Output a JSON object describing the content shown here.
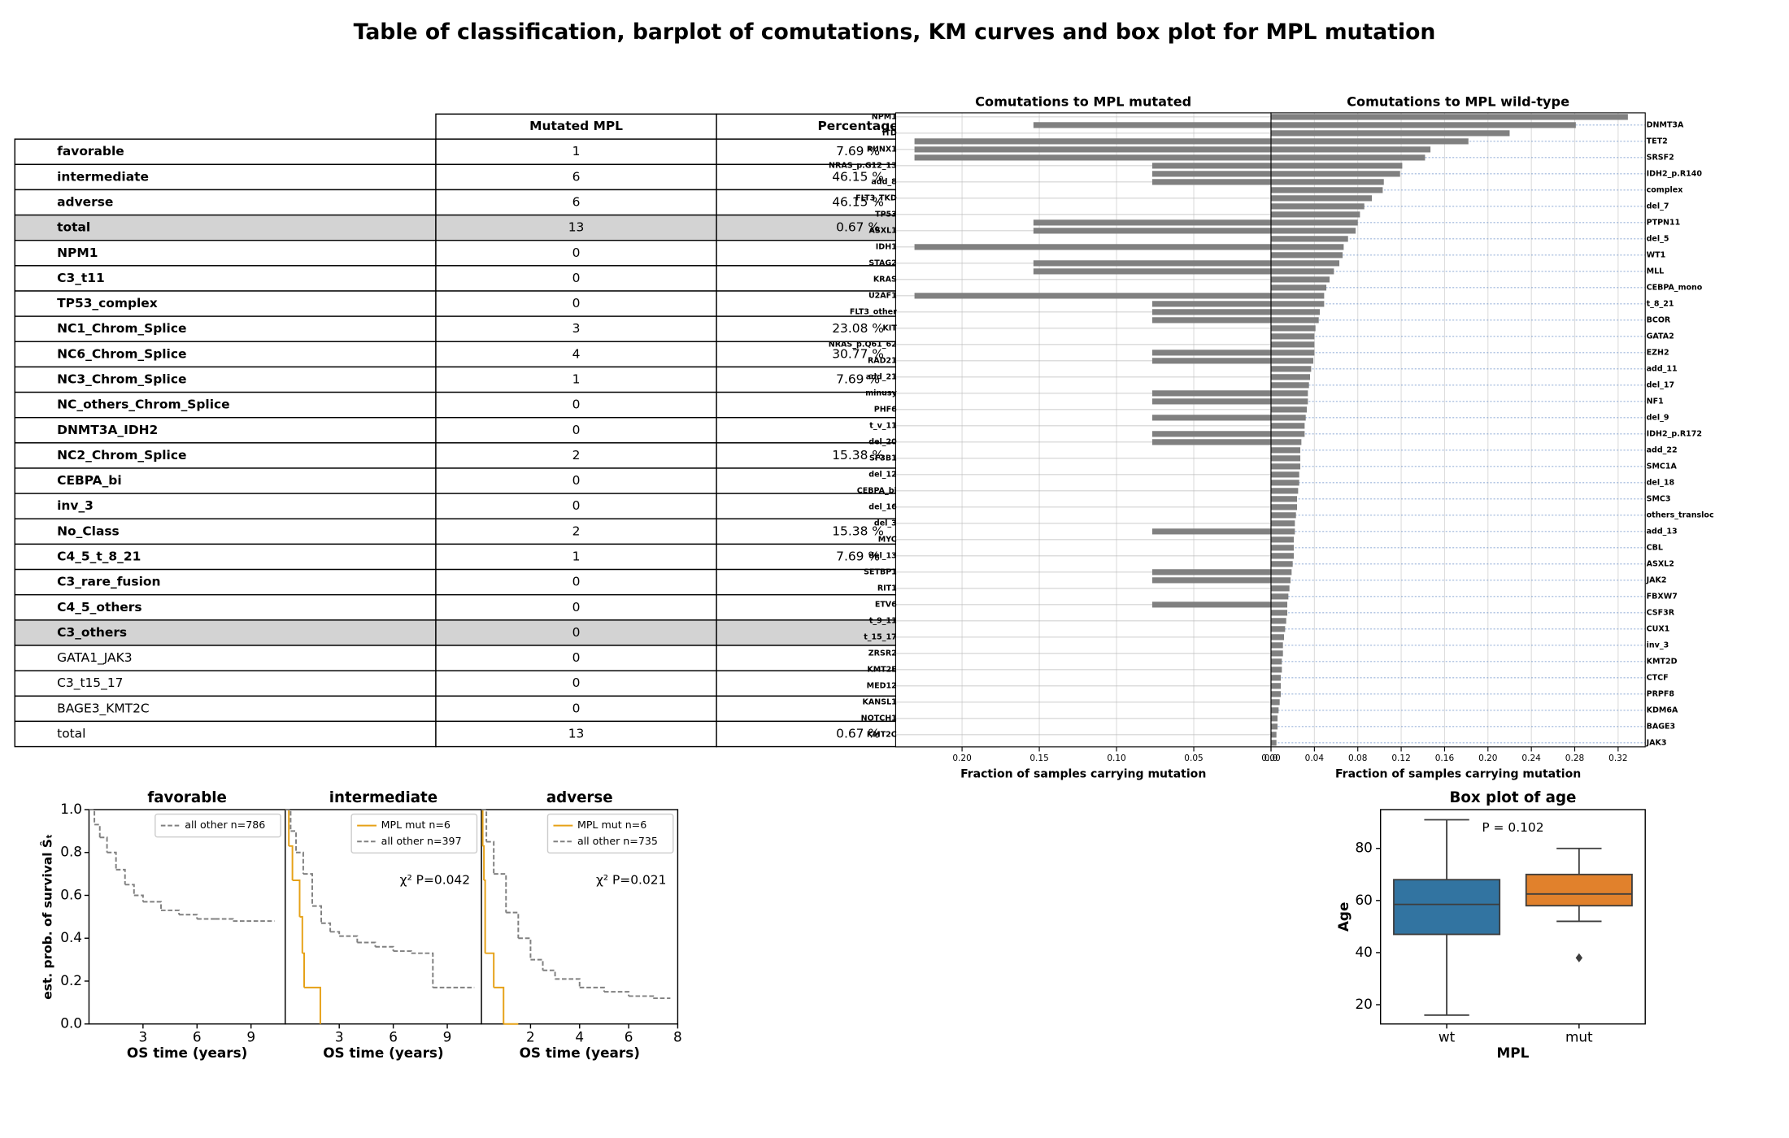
{
  "title": "Table of classification, barplot of comutations, KM curves and box plot for MPL mutation",
  "table": {
    "header": [
      "Mutated MPL",
      "Percentage"
    ],
    "rows": [
      {
        "cells": [
          "favorable",
          1,
          "7.69 %"
        ],
        "bold": true,
        "highlight": false
      },
      {
        "cells": [
          "intermediate",
          6,
          "46.15 %"
        ],
        "bold": true,
        "highlight": false
      },
      {
        "cells": [
          "adverse",
          6,
          "46.15 %"
        ],
        "bold": true,
        "highlight": false
      },
      {
        "cells": [
          "total",
          13,
          "0.67 %"
        ],
        "bold": true,
        "highlight": true
      },
      {
        "cells": [
          "NPM1",
          0,
          null
        ],
        "bold": true,
        "highlight": false
      },
      {
        "cells": [
          "C3_t11",
          0,
          null
        ],
        "bold": true,
        "highlight": false
      },
      {
        "cells": [
          "TP53_complex",
          0,
          null
        ],
        "bold": true,
        "highlight": false
      },
      {
        "cells": [
          "NC1_Chrom_Splice",
          3,
          "23.08 %"
        ],
        "bold": true,
        "highlight": false
      },
      {
        "cells": [
          "NC6_Chrom_Splice",
          4,
          "30.77 %"
        ],
        "bold": true,
        "highlight": false
      },
      {
        "cells": [
          "NC3_Chrom_Splice",
          1,
          "7.69 %"
        ],
        "bold": true,
        "highlight": false
      },
      {
        "cells": [
          "NC_others_Chrom_Splice",
          0,
          null
        ],
        "bold": true,
        "highlight": false
      },
      {
        "cells": [
          "DNMT3A_IDH2",
          0,
          null
        ],
        "bold": true,
        "highlight": false
      },
      {
        "cells": [
          "NC2_Chrom_Splice",
          2,
          "15.38 %"
        ],
        "bold": true,
        "highlight": false
      },
      {
        "cells": [
          "CEBPA_bi",
          0,
          null
        ],
        "bold": true,
        "highlight": false
      },
      {
        "cells": [
          "inv_3",
          0,
          null
        ],
        "bold": true,
        "highlight": false
      },
      {
        "cells": [
          "No_Class",
          2,
          "15.38 %"
        ],
        "bold": true,
        "highlight": false
      },
      {
        "cells": [
          "C4_5_t_8_21",
          1,
          "7.69 %"
        ],
        "bold": true,
        "highlight": false
      },
      {
        "cells": [
          "C3_rare_fusion",
          0,
          null
        ],
        "bold": true,
        "highlight": false
      },
      {
        "cells": [
          "C4_5_others",
          0,
          null
        ],
        "bold": true,
        "highlight": false
      },
      {
        "cells": [
          "C3_others",
          0,
          null
        ],
        "bold": true,
        "highlight": true
      },
      {
        "cells": [
          "GATA1_JAK3",
          0,
          null
        ],
        "bold": false,
        "highlight": false
      },
      {
        "cells": [
          "C3_t15_17",
          0,
          null
        ],
        "bold": false,
        "highlight": false
      },
      {
        "cells": [
          "BAGE3_KMT2C",
          0,
          null
        ],
        "bold": false,
        "highlight": false
      },
      {
        "cells": [
          "total",
          13,
          "0.67 %"
        ],
        "bold": false,
        "highlight": false
      }
    ]
  },
  "chart_data": [
    {
      "type": "comutation",
      "color": "#808080",
      "grid": true,
      "categories": [
        "NPM1",
        "DNMT3A",
        "ITD",
        "TET2",
        "RUNX1",
        "SRSF2",
        "NRAS_p.G12_13",
        "IDH2_p.R140",
        "add_8",
        "complex",
        "FLT3_TKD",
        "del_7",
        "TP53",
        "PTPN11",
        "ASXL1",
        "del_5",
        "IDH1",
        "WT1",
        "STAG2",
        "MLL",
        "KRAS",
        "CEBPA_mono",
        "U2AF1",
        "t_8_21",
        "FLT3_other",
        "BCOR",
        "KIT",
        "GATA2",
        "NRAS_p.Q61_62",
        "EZH2",
        "RAD21",
        "add_11",
        "add_21",
        "del_17",
        "minusy",
        "NF1",
        "PHF6",
        "del_9",
        "t_v_11",
        "IDH2_p.R172",
        "del_20",
        "add_22",
        "SF3B1",
        "SMC1A",
        "del_12",
        "del_18",
        "CEBPA_bi",
        "SMC3",
        "del_16",
        "others_transloc",
        "del_3",
        "add_13",
        "MYC",
        "CBL",
        "del_13",
        "ASXL2",
        "SETBP1",
        "JAK2",
        "RIT1",
        "FBXW7",
        "ETV6",
        "CSF3R",
        "t_9_11",
        "CUX1",
        "t_15_17",
        "inv_3",
        "ZRSR2",
        "KMT2D",
        "KMT2E",
        "CTCF",
        "MED12",
        "PRPF8",
        "KANSL1",
        "KDM6A",
        "NOTCH1",
        "BAGE3",
        "KMT2C",
        "JAK3"
      ],
      "panels": [
        {
          "title": "Comutations to MPL mutated",
          "xlabel": "Fraction of samples carrying mutation",
          "xlim": [
            0.243,
            0
          ],
          "xticks": [
            {
              "value": 0.2,
              "label": "0.20"
            },
            0.15,
            {
              "value": 0.1,
              "label": "0.10"
            },
            0.05,
            {
              "value": 0,
              "label": "0.00"
            }
          ],
          "values": [
            0,
            0.1538,
            0,
            0.2308,
            0.2308,
            0.2308,
            0.0769,
            0.0769,
            0.0769,
            0,
            0,
            0,
            0,
            0.1538,
            0.1538,
            0,
            0.2308,
            0,
            0.1538,
            0.1538,
            0,
            0,
            0.2308,
            0.0769,
            0.0769,
            0.0769,
            0,
            0,
            0,
            0.0769,
            0.0769,
            0,
            0,
            0,
            0.0769,
            0.0769,
            0,
            0.0769,
            0,
            0.0769,
            0.0769,
            0,
            0,
            0,
            0,
            0,
            0,
            0,
            0,
            0,
            0,
            0.0769,
            0,
            0,
            0,
            0,
            0.0769,
            0.0769,
            0,
            0,
            0.0769,
            0,
            0,
            0,
            0,
            0,
            0,
            0,
            0,
            0,
            0,
            0,
            0,
            0,
            0,
            0,
            0,
            0
          ]
        },
        {
          "title": "Comutations to MPL wild-type",
          "xlabel": "Fraction of samples carrying mutation",
          "xlim": [
            0,
            0.345
          ],
          "xticks": [
            {
              "value": 0,
              "label": "0.0"
            },
            0.04,
            0.08,
            0.12,
            0.16,
            {
              "value": 0.2,
              "label": "0.20"
            },
            0.24,
            0.28,
            0.32
          ],
          "values": [
            0.329,
            0.281,
            0.22,
            0.182,
            0.147,
            0.142,
            0.121,
            0.119,
            0.104,
            0.103,
            0.093,
            0.086,
            0.082,
            0.08,
            0.078,
            0.071,
            0.067,
            0.066,
            0.063,
            0.058,
            0.054,
            0.051,
            0.049,
            0.049,
            0.045,
            0.044,
            0.041,
            0.04,
            0.04,
            0.04,
            0.039,
            0.037,
            0.036,
            0.035,
            0.034,
            0.034,
            0.033,
            0.032,
            0.031,
            0.031,
            0.028,
            0.027,
            0.027,
            0.027,
            0.026,
            0.026,
            0.025,
            0.024,
            0.024,
            0.023,
            0.022,
            0.022,
            0.021,
            0.021,
            0.021,
            0.02,
            0.019,
            0.018,
            0.017,
            0.016,
            0.015,
            0.015,
            0.014,
            0.013,
            0.012,
            0.011,
            0.011,
            0.01,
            0.01,
            0.009,
            0.009,
            0.009,
            0.008,
            0.007,
            0.006,
            0.006,
            0.005,
            0.005
          ]
        }
      ]
    },
    {
      "type": "km",
      "title": "favorable",
      "xlabel": "OS time (years)",
      "ylabel": "est. prob. of survival Ŝₜ",
      "xlim": [
        0,
        10.9
      ],
      "ylim": [
        0,
        1
      ],
      "xticks": [
        3,
        6,
        9
      ],
      "yticks": [
        {
          "value": 0,
          "label": "0.0"
        },
        0.2,
        0.4,
        0.6,
        0.8,
        {
          "value": 1,
          "label": "1.0"
        }
      ],
      "legend": "upper right",
      "series": [
        {
          "name": "all other  n=786",
          "color": "#808080",
          "dashed": true,
          "x": [
            0,
            0.3,
            0.6,
            1,
            1.5,
            2,
            2.5,
            3,
            4,
            5,
            6,
            7,
            8,
            10.3
          ],
          "values": [
            1,
            0.93,
            0.87,
            0.8,
            0.72,
            0.65,
            0.6,
            0.57,
            0.53,
            0.51,
            0.49,
            0.49,
            0.48,
            0.48
          ]
        }
      ]
    },
    {
      "type": "km",
      "title": "intermediate",
      "xlabel": "OS time (years)",
      "xlim": [
        0,
        10.9
      ],
      "ylim": [
        0,
        1
      ],
      "xticks": [
        3,
        6,
        9
      ],
      "legend": "upper right",
      "annotation": "χ² P=0.042",
      "series": [
        {
          "name": "MPL  mut n=6",
          "color": "#e6a117",
          "dashed": false,
          "x": [
            0,
            0.2,
            0.4,
            0.8,
            0.95,
            1.05,
            1.95
          ],
          "values": [
            1,
            0.83,
            0.67,
            0.5,
            0.33,
            0.17,
            0
          ]
        },
        {
          "name": "all other  n=397",
          "color": "#808080",
          "dashed": true,
          "x": [
            0,
            0.3,
            0.6,
            1,
            1.5,
            2,
            2.5,
            3,
            4,
            5,
            6,
            7,
            8.2,
            10.5
          ],
          "values": [
            1,
            0.9,
            0.8,
            0.7,
            0.55,
            0.47,
            0.43,
            0.41,
            0.38,
            0.36,
            0.34,
            0.33,
            0.17,
            0.17
          ]
        }
      ]
    },
    {
      "type": "km",
      "title": "adverse",
      "xlabel": "OS time (years)",
      "xlim": [
        0,
        8
      ],
      "ylim": [
        0,
        1
      ],
      "xticks": [
        2,
        4,
        6,
        8
      ],
      "legend": "upper right",
      "annotation": "χ² P=0.021",
      "series": [
        {
          "name": "MPL  mut n=6",
          "color": "#e6a117",
          "dashed": false,
          "x": [
            0,
            0.05,
            0.1,
            0.15,
            0.5,
            0.9,
            1.5
          ],
          "values": [
            1,
            0.83,
            0.67,
            0.33,
            0.17,
            0,
            0
          ]
        },
        {
          "name": "all other  n=735",
          "color": "#808080",
          "dashed": true,
          "x": [
            0,
            0.2,
            0.5,
            1,
            1.5,
            2,
            2.5,
            3,
            4,
            5,
            6,
            7,
            7.7
          ],
          "values": [
            1,
            0.85,
            0.7,
            0.52,
            0.4,
            0.3,
            0.25,
            0.21,
            0.17,
            0.15,
            0.13,
            0.12,
            0.12
          ]
        }
      ]
    },
    {
      "type": "box",
      "title": "Box plot of age",
      "xlabel": "MPL",
      "ylabel": "Age",
      "annotation": "P = 0.102",
      "categories": [
        "wt",
        "mut"
      ],
      "colors": [
        "#3274a1",
        "#e1812c"
      ],
      "ylim": [
        12.6,
        94.9
      ],
      "yticks": [
        20,
        40,
        60,
        80
      ],
      "boxes": [
        {
          "whislo": 16,
          "q1": 47,
          "med": 58.5,
          "q3": 68,
          "whishi": 91,
          "fliers": []
        },
        {
          "whislo": 52,
          "q1": 58,
          "med": 62.5,
          "q3": 70,
          "whishi": 80,
          "fliers": [
            38
          ]
        }
      ]
    }
  ]
}
